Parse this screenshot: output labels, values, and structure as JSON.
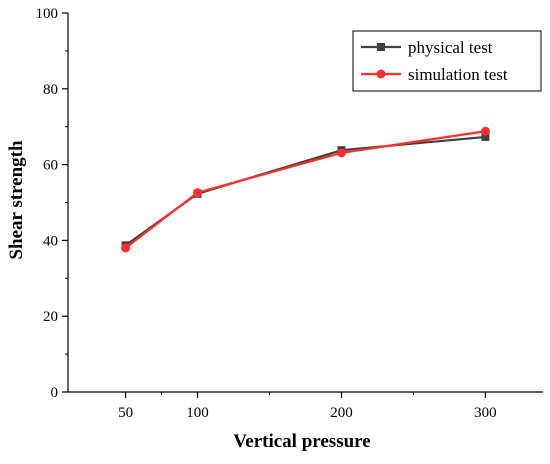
{
  "chart_data": {
    "type": "line",
    "xlabel": "Vertical pressure",
    "ylabel": "Shear strength",
    "x_ticks": [
      50,
      100,
      200,
      300
    ],
    "y_ticks": [
      0,
      20,
      40,
      60,
      80,
      100
    ],
    "xlim": [
      10,
      340
    ],
    "ylim": [
      0,
      100
    ],
    "legend_position": "top-right",
    "grid": false,
    "series": [
      {
        "name": "physical test",
        "color": "#404040",
        "marker": "square",
        "x": [
          50,
          100,
          200,
          300
        ],
        "y": [
          38.7,
          52.3,
          63.8,
          67.3
        ]
      },
      {
        "name": "simulation test",
        "color": "#ff2d2d",
        "marker": "circle",
        "x": [
          50,
          100,
          200,
          300
        ],
        "y": [
          38.0,
          52.6,
          63.1,
          68.8
        ]
      }
    ]
  }
}
